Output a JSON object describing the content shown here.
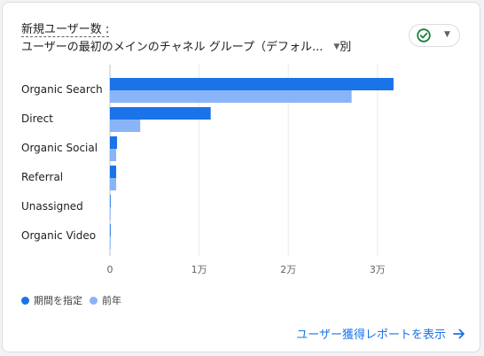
{
  "card": {
    "title_line1": "新規ユーザー数 :",
    "title_line2": "ユーザーの最初のメインのチャネル グループ（デフォル...",
    "title_suffix": "別"
  },
  "status_chip": {
    "icon": "check-circle-icon",
    "caret": "chevron-down-icon"
  },
  "legend": {
    "current": "期間を指定",
    "previous": "前年"
  },
  "footer": {
    "link_label": "ユーザー獲得レポートを表示"
  },
  "colors": {
    "current": "#1a73e8",
    "previous": "#8ab4f8",
    "grid": "#e8eaed",
    "check": "#188038"
  },
  "chart_data": {
    "type": "bar",
    "orientation": "horizontal",
    "categories": [
      "Organic Search",
      "Direct",
      "Organic Social",
      "Referral",
      "Unassigned",
      "Organic Video"
    ],
    "series": [
      {
        "name": "期間を指定",
        "values": [
          31800,
          11300,
          800,
          700,
          30,
          20
        ]
      },
      {
        "name": "前年",
        "values": [
          27100,
          3400,
          700,
          700,
          10,
          10
        ]
      }
    ],
    "xlim": [
      0,
      33000
    ],
    "ticks": [
      0,
      10000,
      20000,
      30000
    ],
    "tick_labels": [
      "0",
      "1万",
      "2万",
      "3万"
    ],
    "grid": true,
    "legend_position": "bottom-left"
  }
}
